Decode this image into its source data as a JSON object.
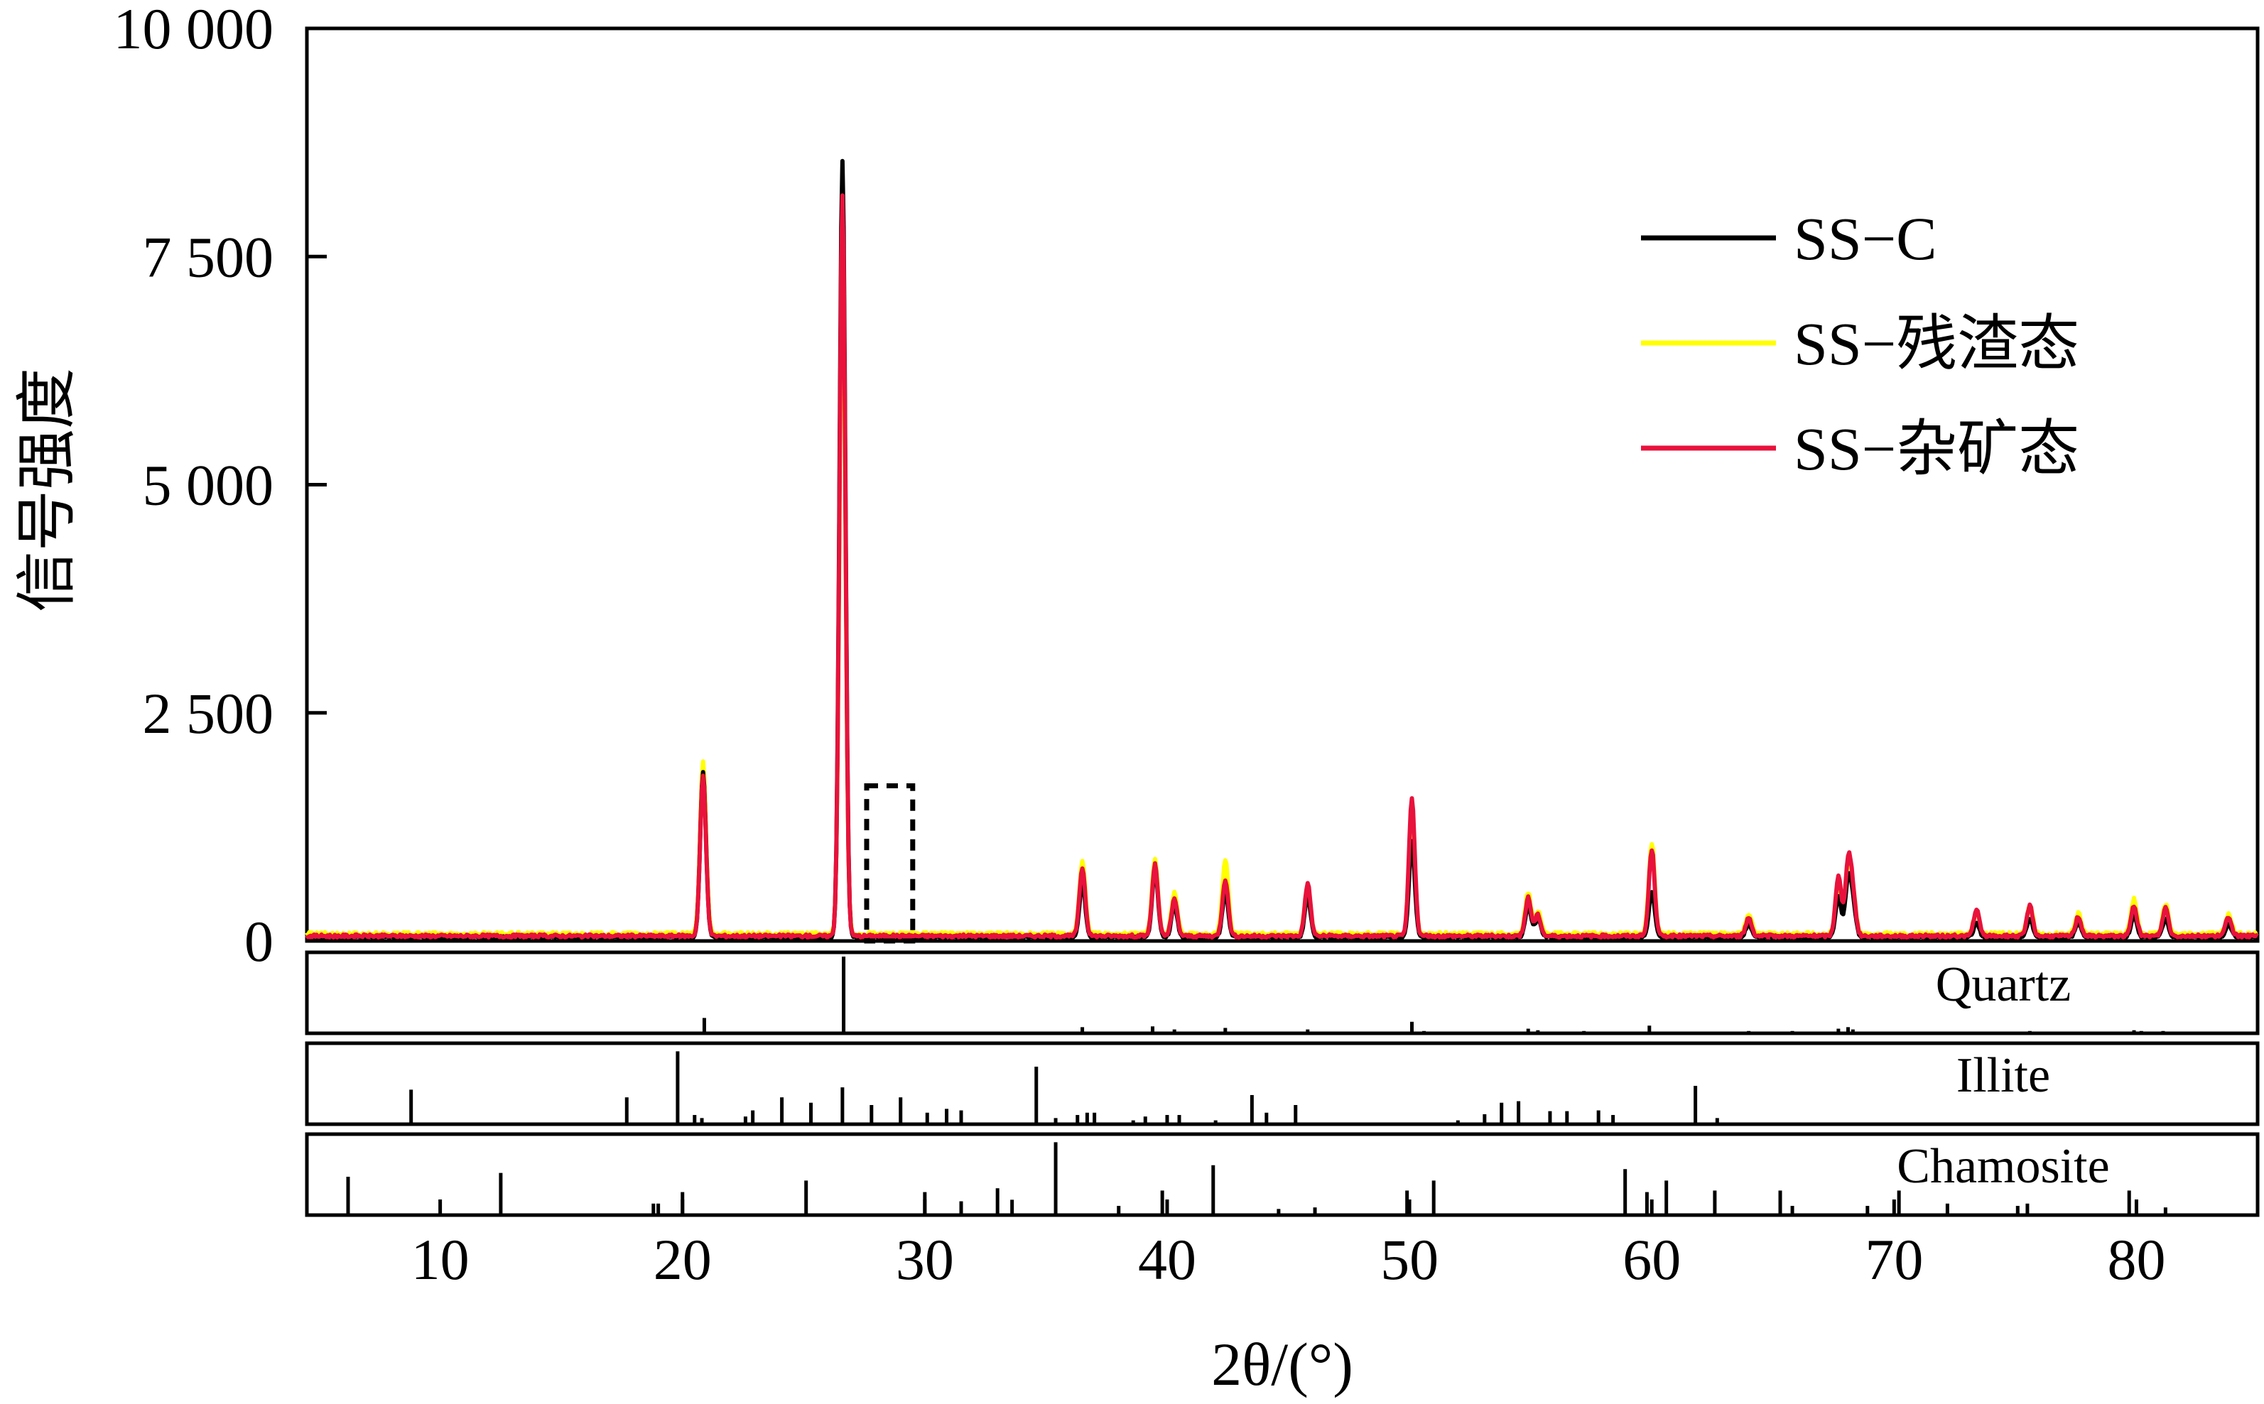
{
  "chart_data": {
    "type": "line",
    "xlabel": "2θ/(°)",
    "ylabel": "信号强度",
    "xlim": [
      4.5,
      85
    ],
    "ylim": [
      0,
      10000
    ],
    "x_ticks": [
      10,
      20,
      30,
      40,
      50,
      60,
      70,
      80
    ],
    "y_ticks": [
      0,
      2500,
      5000,
      7500,
      10000
    ],
    "y_tick_labels": [
      "0",
      "2 500",
      "5 000",
      "7 500",
      "10 000"
    ],
    "x_tick_labels": [
      "10",
      "20",
      "30",
      "40",
      "50",
      "60",
      "70",
      "80"
    ],
    "legend": {
      "placement": "top-right"
    },
    "series": [
      {
        "name": "SS−C",
        "color": "#000000",
        "baseline": 40,
        "peaks": [
          [
            20.85,
            1800
          ],
          [
            26.6,
            8500
          ],
          [
            36.5,
            600
          ],
          [
            39.5,
            750
          ],
          [
            40.3,
            350
          ],
          [
            42.4,
            500
          ],
          [
            45.8,
            450
          ],
          [
            50.1,
            1050
          ],
          [
            54.9,
            350
          ],
          [
            55.3,
            200
          ],
          [
            60.0,
            500
          ],
          [
            64.0,
            150
          ],
          [
            67.7,
            450
          ],
          [
            68.1,
            600
          ],
          [
            68.3,
            350
          ],
          [
            73.4,
            150
          ],
          [
            75.6,
            200
          ],
          [
            77.6,
            150
          ],
          [
            79.9,
            250
          ],
          [
            81.2,
            200
          ],
          [
            83.8,
            150
          ]
        ]
      },
      {
        "name": "SS−残渣态",
        "color": "#ffff00",
        "baseline": 75,
        "peaks": [
          [
            20.85,
            1900
          ],
          [
            26.6,
            7600
          ],
          [
            36.5,
            800
          ],
          [
            39.5,
            820
          ],
          [
            40.3,
            450
          ],
          [
            42.4,
            820
          ],
          [
            45.8,
            520
          ],
          [
            50.1,
            1350
          ],
          [
            54.9,
            450
          ],
          [
            55.3,
            250
          ],
          [
            60.0,
            1000
          ],
          [
            64.0,
            220
          ],
          [
            67.7,
            600
          ],
          [
            68.1,
            700
          ],
          [
            68.3,
            400
          ],
          [
            73.4,
            250
          ],
          [
            75.6,
            320
          ],
          [
            77.6,
            230
          ],
          [
            79.9,
            380
          ],
          [
            81.2,
            330
          ],
          [
            83.8,
            220
          ]
        ]
      },
      {
        "name": "SS−杂矿态",
        "color": "#e8123c",
        "baseline": 55,
        "peaks": [
          [
            20.85,
            1750
          ],
          [
            26.6,
            8100
          ],
          [
            36.5,
            750
          ],
          [
            39.5,
            780
          ],
          [
            40.3,
            400
          ],
          [
            42.4,
            620
          ],
          [
            45.8,
            570
          ],
          [
            50.1,
            1500
          ],
          [
            54.9,
            420
          ],
          [
            55.3,
            230
          ],
          [
            60.0,
            950
          ],
          [
            64.0,
            200
          ],
          [
            67.7,
            650
          ],
          [
            68.1,
            780
          ],
          [
            68.3,
            420
          ],
          [
            73.4,
            280
          ],
          [
            75.6,
            330
          ],
          [
            77.6,
            210
          ],
          [
            79.9,
            330
          ],
          [
            81.2,
            310
          ],
          [
            83.8,
            210
          ]
        ]
      }
    ],
    "annotations": [
      {
        "type": "dashed-box",
        "x_range": [
          27.6,
          29.5
        ],
        "y_range": [
          0,
          1700
        ]
      }
    ],
    "reference_panels": [
      {
        "name": "Quartz",
        "sticks": [
          [
            20.9,
            0.2
          ],
          [
            26.65,
            1.0
          ],
          [
            36.5,
            0.08
          ],
          [
            39.4,
            0.09
          ],
          [
            40.3,
            0.05
          ],
          [
            42.4,
            0.07
          ],
          [
            45.8,
            0.05
          ],
          [
            50.1,
            0.15
          ],
          [
            50.6,
            0.03
          ],
          [
            54.9,
            0.06
          ],
          [
            55.3,
            0.04
          ],
          [
            57.2,
            0.03
          ],
          [
            59.9,
            0.1
          ],
          [
            64.0,
            0.03
          ],
          [
            65.8,
            0.03
          ],
          [
            67.7,
            0.06
          ],
          [
            68.1,
            0.08
          ],
          [
            68.3,
            0.05
          ],
          [
            73.5,
            0.02
          ],
          [
            75.6,
            0.03
          ],
          [
            77.6,
            0.02
          ],
          [
            79.9,
            0.04
          ],
          [
            80.2,
            0.03
          ],
          [
            81.1,
            0.03
          ],
          [
            83.8,
            0.02
          ]
        ]
      },
      {
        "name": "Illite",
        "sticks": [
          [
            8.8,
            0.45
          ],
          [
            17.7,
            0.35
          ],
          [
            19.8,
            0.95
          ],
          [
            20.5,
            0.12
          ],
          [
            20.8,
            0.08
          ],
          [
            22.6,
            0.1
          ],
          [
            22.9,
            0.18
          ],
          [
            24.1,
            0.35
          ],
          [
            25.3,
            0.28
          ],
          [
            26.6,
            0.48
          ],
          [
            27.8,
            0.25
          ],
          [
            29.0,
            0.35
          ],
          [
            30.1,
            0.15
          ],
          [
            30.9,
            0.2
          ],
          [
            31.5,
            0.18
          ],
          [
            34.6,
            0.75
          ],
          [
            35.4,
            0.08
          ],
          [
            36.3,
            0.12
          ],
          [
            36.7,
            0.15
          ],
          [
            37.0,
            0.15
          ],
          [
            38.6,
            0.05
          ],
          [
            39.1,
            0.1
          ],
          [
            40.0,
            0.12
          ],
          [
            40.5,
            0.12
          ],
          [
            42.0,
            0.05
          ],
          [
            43.5,
            0.38
          ],
          [
            44.1,
            0.15
          ],
          [
            45.3,
            0.25
          ],
          [
            52.0,
            0.05
          ],
          [
            53.1,
            0.13
          ],
          [
            53.8,
            0.28
          ],
          [
            54.5,
            0.3
          ],
          [
            55.8,
            0.17
          ],
          [
            56.5,
            0.17
          ],
          [
            57.8,
            0.18
          ],
          [
            58.4,
            0.12
          ],
          [
            61.8,
            0.5
          ],
          [
            62.7,
            0.08
          ]
        ]
      },
      {
        "name": "Chamosite",
        "sticks": [
          [
            6.2,
            0.5
          ],
          [
            12.5,
            0.55
          ],
          [
            18.8,
            0.15
          ],
          [
            19.0,
            0.15
          ],
          [
            20.0,
            0.3
          ],
          [
            25.1,
            0.45
          ],
          [
            30.0,
            0.3
          ],
          [
            31.5,
            0.18
          ],
          [
            33.0,
            0.35
          ],
          [
            33.6,
            0.2
          ],
          [
            35.4,
            0.95
          ],
          [
            38.0,
            0.12
          ],
          [
            39.8,
            0.32
          ],
          [
            41.9,
            0.65
          ],
          [
            44.6,
            0.08
          ],
          [
            46.1,
            0.1
          ],
          [
            49.9,
            0.32
          ],
          [
            51.0,
            0.45
          ],
          [
            58.9,
            0.6
          ],
          [
            59.8,
            0.3
          ],
          [
            60.6,
            0.45
          ],
          [
            62.6,
            0.32
          ],
          [
            65.3,
            0.32
          ],
          [
            65.8,
            0.12
          ],
          [
            68.9,
            0.12
          ],
          [
            70.2,
            0.32
          ],
          [
            72.2,
            0.15
          ],
          [
            75.1,
            0.12
          ],
          [
            75.5,
            0.15
          ],
          [
            79.7,
            0.32
          ],
          [
            81.2,
            0.1
          ]
        ]
      }
    ]
  }
}
